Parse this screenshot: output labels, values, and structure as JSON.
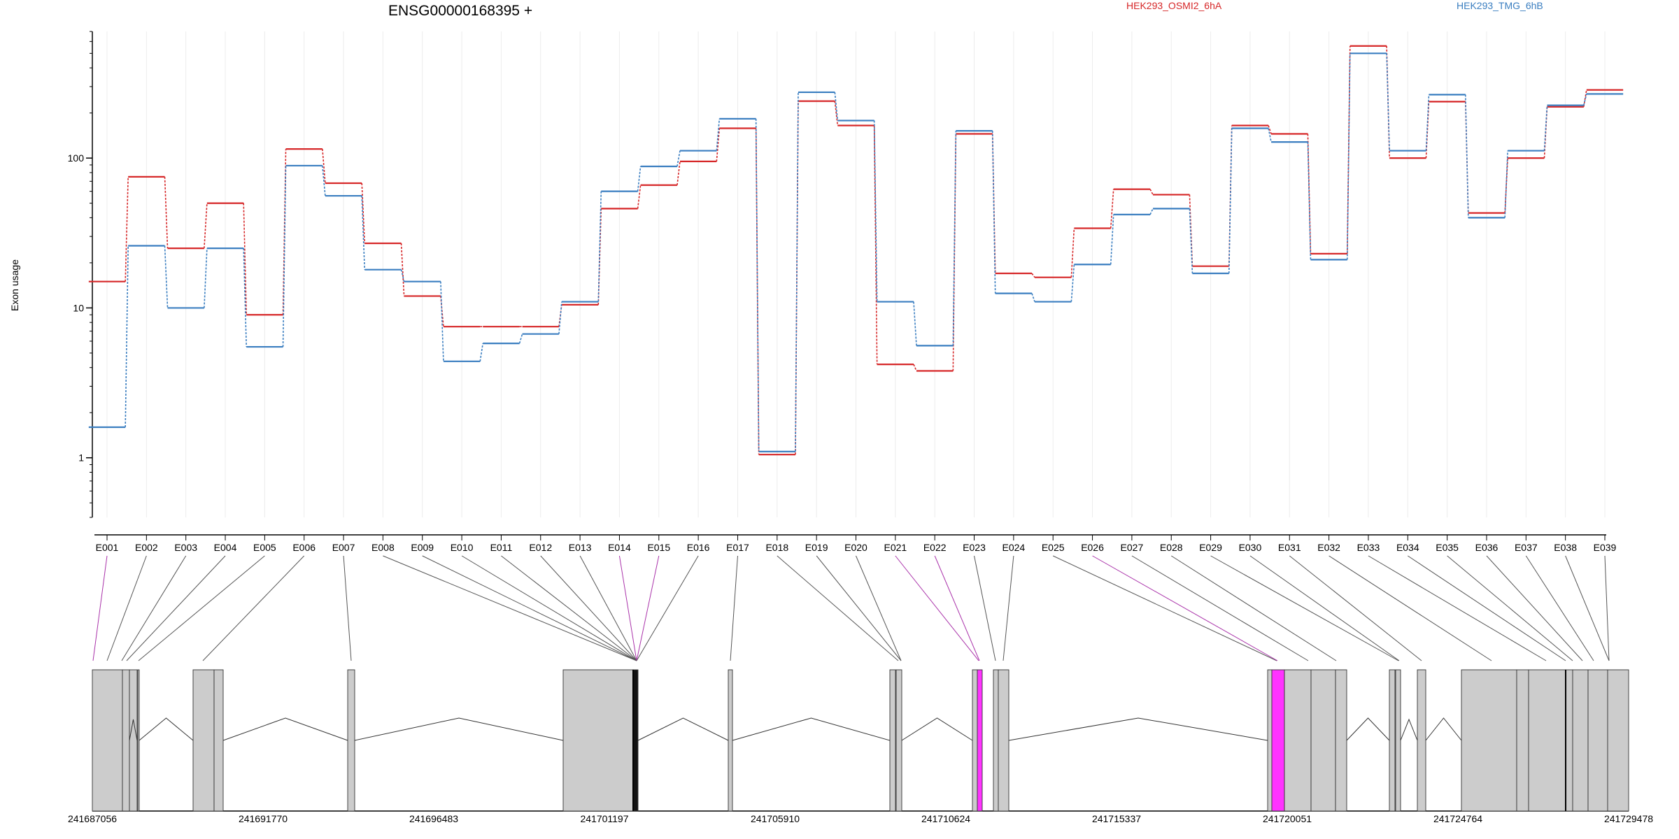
{
  "title": "ENSG00000168395 +",
  "legend": [
    {
      "label": "HEK293_OSMI2_6hA",
      "color": "#d62728"
    },
    {
      "label": "HEK293_TMG_6hB",
      "color": "#3a7ec0"
    }
  ],
  "chart_data": {
    "type": "line",
    "ylabel": "Exon usage",
    "yscale": "log",
    "ylim": [
      0.4,
      700
    ],
    "yticks": [
      1,
      10,
      100
    ],
    "ytick_labels": [
      "1",
      "10",
      "100"
    ],
    "exons": [
      "E001",
      "E002",
      "E003",
      "E004",
      "E005",
      "E006",
      "E007",
      "E008",
      "E009",
      "E010",
      "E011",
      "E012",
      "E013",
      "E014",
      "E015",
      "E016",
      "E017",
      "E018",
      "E019",
      "E020",
      "E021",
      "E022",
      "E023",
      "E024",
      "E025",
      "E026",
      "E027",
      "E028",
      "E029",
      "E030",
      "E031",
      "E032",
      "E033",
      "E034",
      "E035",
      "E036",
      "E037",
      "E038",
      "E039"
    ],
    "series": [
      {
        "name": "HEK293_OSMI2_6hA",
        "color": "#d62728",
        "values": [
          15,
          75,
          25,
          50,
          9,
          115,
          68,
          27,
          12,
          7.5,
          7.5,
          7.5,
          10.5,
          46,
          66,
          95,
          158,
          1.05,
          240,
          165,
          4.2,
          3.8,
          145,
          17,
          16,
          34,
          62,
          57,
          19,
          165,
          145,
          23,
          560,
          100,
          238,
          43,
          100,
          220,
          285
        ]
      },
      {
        "name": "HEK293_TMG_6hB",
        "color": "#3a7ec0",
        "values": [
          1.6,
          26,
          10,
          25,
          5.5,
          89,
          56,
          18,
          15,
          4.4,
          5.8,
          6.7,
          11,
          60,
          88,
          112,
          183,
          1.1,
          275,
          178,
          11,
          5.6,
          152,
          12.5,
          11,
          19.5,
          42,
          46,
          17,
          158,
          128,
          21,
          500,
          112,
          265,
          40,
          112,
          225,
          268
        ]
      }
    ],
    "highlight_exons": [
      "E001",
      "E014",
      "E015",
      "E021",
      "E022",
      "E026"
    ],
    "genome_axis": {
      "tick_labels": [
        "241687056",
        "241691770",
        "241696483",
        "241701197",
        "241705910",
        "241710624",
        "241715337",
        "241720051",
        "241724764",
        "241729478"
      ]
    }
  }
}
